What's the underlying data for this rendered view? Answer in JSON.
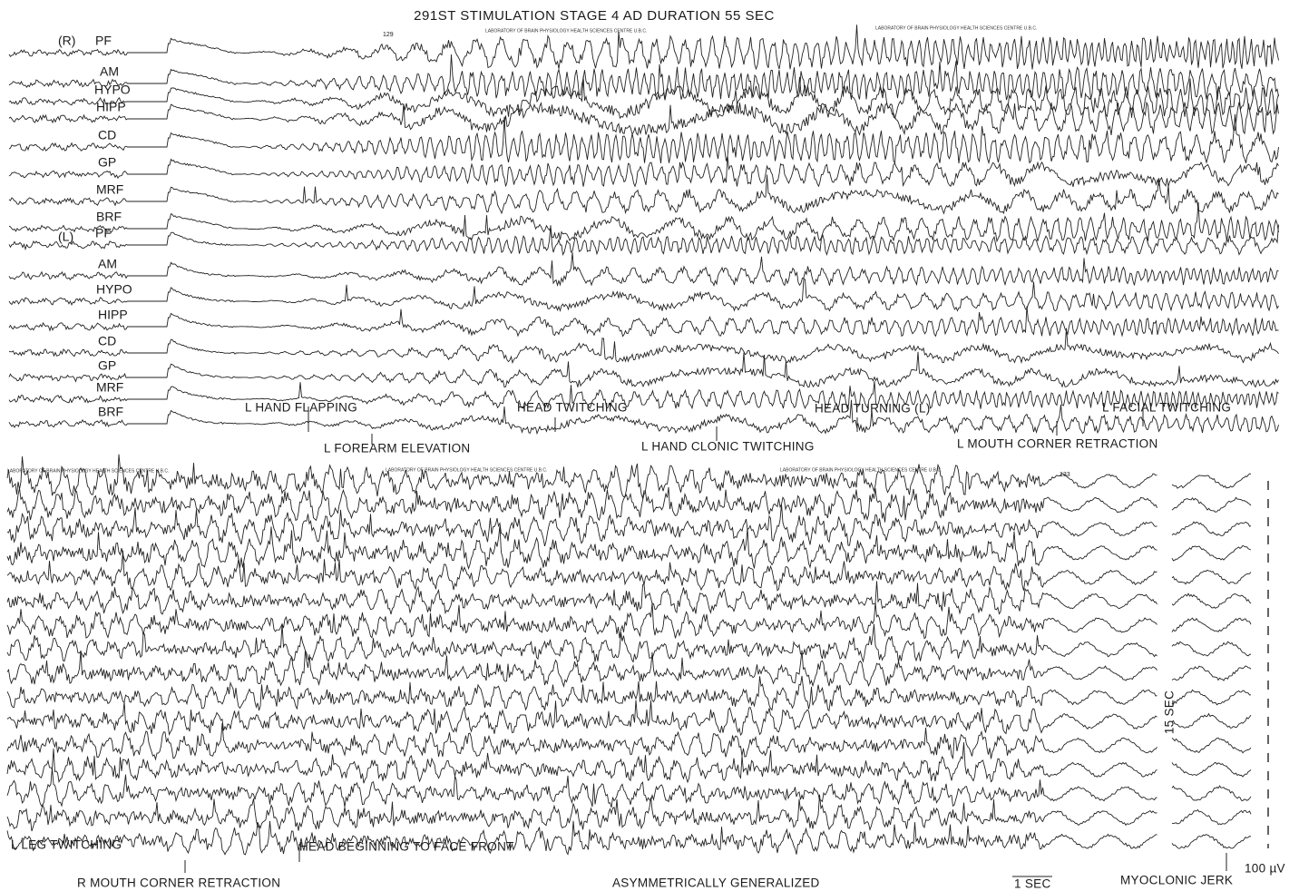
{
  "title": "291ST STIMULATION STAGE 4 AD DURATION 55 SEC",
  "hemispheres": [
    "(R)",
    "(L)"
  ],
  "channels": [
    "PF",
    "AM",
    "HYPO",
    "HIPP",
    "CD",
    "GP",
    "MRF",
    "BRF",
    "PF",
    "AM",
    "HYPO",
    "HIPP",
    "CD",
    "GP",
    "MRF",
    "BRF"
  ],
  "stamp": "LABORATORY OF BRAIN PHYSIOLOGY HEALTH SCIENCES CENTRE U.B.C.",
  "page_numbers": [
    "129",
    "133"
  ],
  "top_events_upper": [
    "L HAND FLAPPING",
    "HEAD TWITCHING",
    "HEAD TURNING (L)",
    "L FACIAL TWITCHING"
  ],
  "top_events_lower": [
    "L FOREARM ELEVATION",
    "L HAND CLONIC TWITCHING",
    "L MOUTH CORNER RETRACTION"
  ],
  "bottom_events_upper": [
    "L LEG TWITCHING",
    "HEAD BEGINNING TO FACE FRONT"
  ],
  "bottom_events_lower": [
    "R MOUTH CORNER RETRACTION",
    "ASYMMETRICALLY GENERALIZED",
    "MYOCLONIC JERK"
  ],
  "scale": {
    "time": "1 SEC",
    "voltage": "100 µV",
    "gap": "15 SEC"
  }
}
